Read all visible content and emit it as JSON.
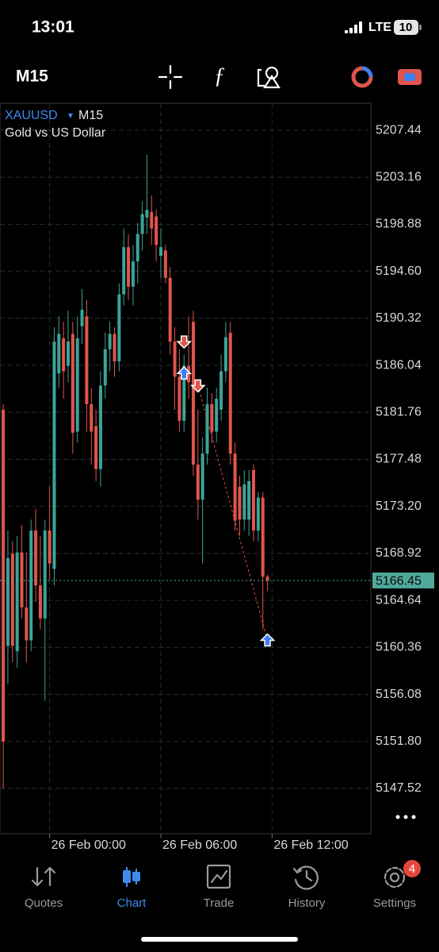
{
  "status_bar": {
    "time": "13:01",
    "network": "LTE",
    "battery": 10
  },
  "toolbar": {
    "timeframe": "M15"
  },
  "chart_data": {
    "type": "candlestick",
    "symbol": "XAUUSD",
    "timeframe": "M15",
    "description": "Gold vs US Dollar",
    "up_color": "#3aa597",
    "down_color": "#e0554b",
    "grid": true,
    "xlim": [
      -0.7,
      79.3
    ],
    "xticks": [
      {
        "value": 10,
        "label": "26 Feb 00:00"
      },
      {
        "value": 34,
        "label": "26 Feb 06:00"
      },
      {
        "value": 58,
        "label": "26 Feb 12:00"
      }
    ],
    "ylim": [
      5143.4,
      5209.9
    ],
    "yticks": [
      5207.44,
      5203.16,
      5198.88,
      {
        "value": 5194.6,
        "label": "5194.60"
      },
      5190.32,
      5186.04,
      5181.76,
      5177.48,
      {
        "value": 5173.2,
        "label": "5173.20"
      },
      5168.92,
      5164.64,
      5160.36,
      5156.08,
      {
        "value": 5151.8,
        "label": "5151.80"
      },
      5147.52
    ],
    "current_price": 5166.45,
    "open": [
      5182.0,
      5160.5,
      5168.9,
      5160.0,
      5169.0,
      5164.0,
      5161.0,
      5171.0,
      5166.0,
      5163.0,
      5171.0,
      5167.5,
      5185.3,
      5188.5,
      5186.0,
      5188.9,
      5180.0,
      5189.6,
      5190.5,
      5182.5,
      5180.5,
      5176.6,
      5184.2,
      5187.5,
      5188.9,
      5186.4,
      5192.5,
      5196.8,
      5193.2,
      5195.5,
      5198.0,
      5199.5,
      5200.0,
      5199.6,
      5196.0,
      5196.5,
      5194.0,
      5188.2,
      5185.0,
      5181.0,
      5186.0,
      5190.0,
      5177.0,
      5173.8,
      5178.0,
      5182.5,
      5180.0,
      5182.0,
      5185.5,
      5189.0,
      5178.0,
      5175.0,
      5172.0,
      5172.0,
      5176.5,
      5171.0,
      5174.0,
      5166.8
    ],
    "high": [
      5182.5,
      5171.0,
      5170.0,
      5170.5,
      5171.5,
      5169.0,
      5172.0,
      5173.0,
      5170.5,
      5172.0,
      5175.0,
      5189.5,
      5190.5,
      5190.0,
      5191.0,
      5190.0,
      5190.5,
      5193.0,
      5192.0,
      5184.0,
      5182.0,
      5185.5,
      5189.0,
      5190.0,
      5189.5,
      5193.5,
      5198.5,
      5198.0,
      5197.0,
      5199.0,
      5201.0,
      5205.2,
      5201.5,
      5200.2,
      5198.5,
      5197.0,
      5195.0,
      5189.5,
      5187.5,
      5187.0,
      5190.5,
      5191.0,
      5182.0,
      5179.5,
      5184.0,
      5183.5,
      5184.0,
      5187.0,
      5190.0,
      5190.0,
      5179.0,
      5176.0,
      5176.5,
      5176.5,
      5177.0,
      5174.5,
      5174.5,
      5167.0
    ],
    "low": [
      5147.5,
      5157.0,
      5159.0,
      5158.5,
      5163.0,
      5159.0,
      5160.0,
      5164.5,
      5162.0,
      5155.5,
      5166.5,
      5166.0,
      5184.0,
      5183.0,
      5184.5,
      5178.0,
      5179.0,
      5188.0,
      5180.0,
      5177.0,
      5175.5,
      5175.0,
      5183.0,
      5185.5,
      5185.0,
      5185.5,
      5191.5,
      5192.0,
      5191.5,
      5193.5,
      5196.5,
      5198.0,
      5197.0,
      5195.5,
      5194.0,
      5193.5,
      5187.0,
      5182.0,
      5180.0,
      5180.0,
      5183.0,
      5176.0,
      5172.0,
      5168.0,
      5177.0,
      5179.0,
      5179.0,
      5181.0,
      5184.5,
      5177.0,
      5171.0,
      5170.5,
      5171.0,
      5170.5,
      5170.0,
      5170.0,
      5162.0,
      5165.5
    ],
    "close": [
      5151.8,
      5168.5,
      5160.5,
      5169.0,
      5164.0,
      5161.0,
      5171.0,
      5166.0,
      5163.0,
      5171.0,
      5168.0,
      5188.2,
      5188.9,
      5185.5,
      5188.2,
      5179.9,
      5188.5,
      5191.1,
      5182.5,
      5180.0,
      5176.6,
      5184.2,
      5187.5,
      5188.9,
      5186.4,
      5192.5,
      5196.8,
      5193.2,
      5195.5,
      5198.0,
      5199.8,
      5200.2,
      5198.5,
      5197.0,
      5196.8,
      5194.0,
      5188.2,
      5185.0,
      5181.0,
      5186.0,
      5184.5,
      5177.0,
      5173.8,
      5178.0,
      5182.5,
      5180.0,
      5183.0,
      5185.5,
      5188.6,
      5178.0,
      5171.9,
      5172.0,
      5175.2,
      5175.5,
      5171.0,
      5174.0,
      5166.8,
      5166.45
    ],
    "markers": [
      {
        "x": 39,
        "y": 5188.2,
        "direction": "down",
        "color": "#e0554b"
      },
      {
        "x": 39,
        "y": 5185.3,
        "direction": "up",
        "color": "#3d7ff0"
      },
      {
        "x": 42,
        "y": 5184.2,
        "direction": "down",
        "color": "#e0554b"
      },
      {
        "x": 57,
        "y": 5161.0,
        "direction": "up",
        "color": "#3d7ff0"
      }
    ],
    "connect": [
      2,
      3
    ]
  },
  "tab_bar": {
    "tabs": [
      "Quotes",
      "Chart",
      "Trade",
      "History",
      "Settings"
    ],
    "active": 1,
    "badge": 4
  }
}
